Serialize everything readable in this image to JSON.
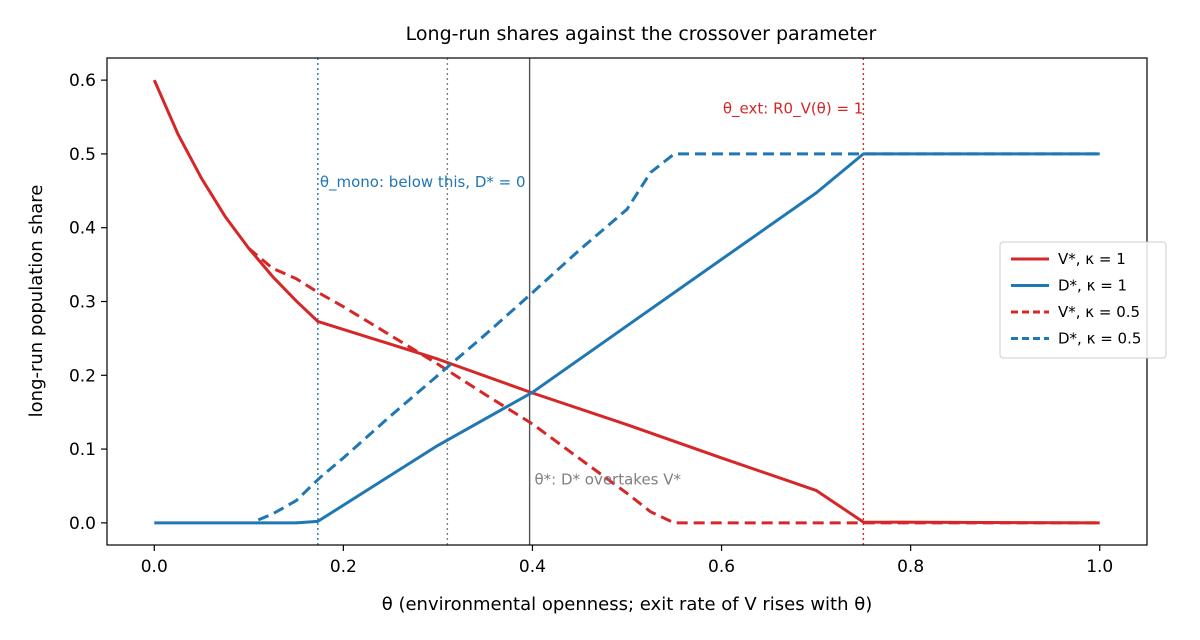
{
  "chart_data": {
    "type": "line",
    "title": "Long-run shares against the crossover parameter",
    "xlabel": "θ (environmental openness; exit rate of V rises with θ)",
    "ylabel": "long-run population share",
    "xlim": [
      -0.05,
      1.05
    ],
    "ylim": [
      -0.03,
      0.63
    ],
    "xticks": [
      0.0,
      0.2,
      0.4,
      0.6,
      0.8,
      1.0
    ],
    "xtick_labels": [
      "0.0",
      "0.2",
      "0.4",
      "0.6",
      "0.8",
      "1.0"
    ],
    "yticks": [
      0.0,
      0.1,
      0.2,
      0.3,
      0.4,
      0.5,
      0.6
    ],
    "ytick_labels": [
      "0.0",
      "0.1",
      "0.2",
      "0.3",
      "0.4",
      "0.5",
      "0.6"
    ],
    "grid": false,
    "legend_position": "center-right",
    "series": [
      {
        "name": "V*, κ = 1",
        "color": "#d62728",
        "dash": "solid",
        "points": [
          [
            0.0,
            0.6
          ],
          [
            0.025,
            0.527
          ],
          [
            0.05,
            0.467
          ],
          [
            0.075,
            0.415
          ],
          [
            0.1,
            0.372
          ],
          [
            0.125,
            0.334
          ],
          [
            0.15,
            0.301
          ],
          [
            0.173,
            0.273
          ],
          [
            0.3,
            0.222
          ],
          [
            0.4,
            0.176
          ],
          [
            0.5,
            0.133
          ],
          [
            0.6,
            0.088
          ],
          [
            0.7,
            0.044
          ],
          [
            0.75,
            0.001
          ],
          [
            1.0,
            0.0
          ]
        ]
      },
      {
        "name": "D*, κ = 1",
        "color": "#1f77b4",
        "dash": "solid",
        "points": [
          [
            0.0,
            0.0
          ],
          [
            0.15,
            0.0
          ],
          [
            0.173,
            0.002
          ],
          [
            0.3,
            0.105
          ],
          [
            0.4,
            0.177
          ],
          [
            0.5,
            0.267
          ],
          [
            0.6,
            0.357
          ],
          [
            0.7,
            0.447
          ],
          [
            0.75,
            0.5
          ],
          [
            1.0,
            0.5
          ]
        ]
      },
      {
        "name": "V*, κ = 0.5",
        "color": "#d62728",
        "dash": "dashed",
        "points": [
          [
            0.1,
            0.372
          ],
          [
            0.125,
            0.345
          ],
          [
            0.15,
            0.331
          ],
          [
            0.175,
            0.311
          ],
          [
            0.2,
            0.293
          ],
          [
            0.25,
            0.254
          ],
          [
            0.3,
            0.215
          ],
          [
            0.35,
            0.174
          ],
          [
            0.4,
            0.134
          ],
          [
            0.45,
            0.087
          ],
          [
            0.5,
            0.04
          ],
          [
            0.525,
            0.015
          ],
          [
            0.55,
            0.0
          ],
          [
            1.0,
            0.0
          ]
        ]
      },
      {
        "name": "D*, κ = 0.5",
        "color": "#1f77b4",
        "dash": "dashed",
        "points": [
          [
            0.11,
            0.004
          ],
          [
            0.125,
            0.012
          ],
          [
            0.15,
            0.03
          ],
          [
            0.175,
            0.061
          ],
          [
            0.2,
            0.088
          ],
          [
            0.25,
            0.145
          ],
          [
            0.3,
            0.2
          ],
          [
            0.35,
            0.255
          ],
          [
            0.4,
            0.312
          ],
          [
            0.45,
            0.37
          ],
          [
            0.5,
            0.425
          ],
          [
            0.525,
            0.475
          ],
          [
            0.55,
            0.5
          ],
          [
            1.0,
            0.5
          ]
        ]
      }
    ],
    "vlines": [
      {
        "x": 0.173,
        "color": "#1f77b4",
        "style": "dotted"
      },
      {
        "x": 0.31,
        "color": "#808080",
        "style": "dotted"
      },
      {
        "x": 0.397,
        "color": "#555555",
        "style": "solid"
      },
      {
        "x": 0.75,
        "color": "#d62728",
        "style": "dotted"
      }
    ],
    "annotations": [
      {
        "text": "θ_mono: below this, D* = 0",
        "x": 0.173,
        "y": 0.455,
        "color": "#1f77b4",
        "anchor": "start"
      },
      {
        "text": "θ_ext: R0_V(θ) = 1",
        "x": 0.75,
        "y": 0.555,
        "color": "#d62728",
        "anchor": "end"
      },
      {
        "text": "θ*: D* overtakes V*",
        "x": 0.4,
        "y": 0.052,
        "color": "#808080",
        "anchor": "start"
      }
    ]
  }
}
